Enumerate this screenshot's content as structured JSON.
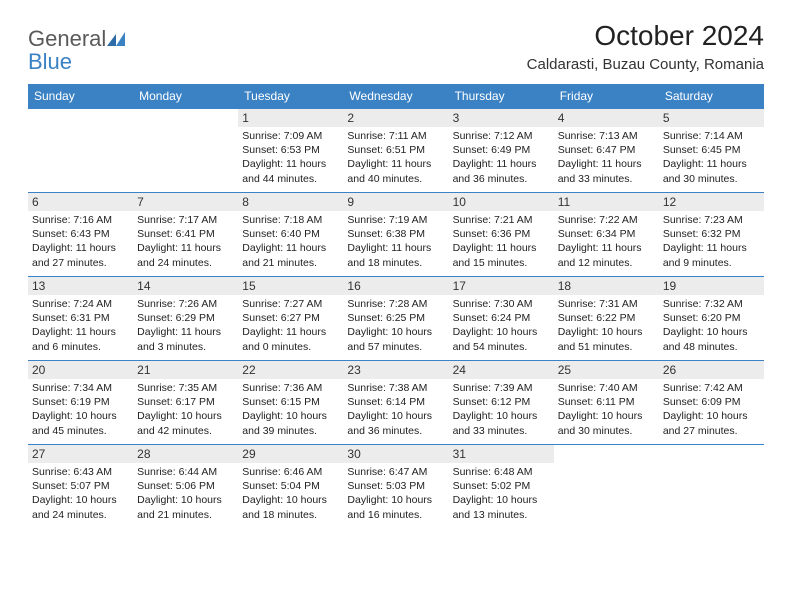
{
  "logo": {
    "general": "General",
    "blue": "Blue"
  },
  "title": "October 2024",
  "location": "Caldarasti, Buzau County, Romania",
  "colors": {
    "header_bg": "#3b82c4",
    "header_text": "#ffffff",
    "daynum_bg": "#ececec",
    "border": "#3b82c4",
    "logo_gray": "#5a5a5a",
    "logo_blue": "#3b82c4"
  },
  "dayHeaders": [
    "Sunday",
    "Monday",
    "Tuesday",
    "Wednesday",
    "Thursday",
    "Friday",
    "Saturday"
  ],
  "weeks": [
    [
      {
        "blank": true
      },
      {
        "blank": true
      },
      {
        "num": "1",
        "sunrise": "Sunrise: 7:09 AM",
        "sunset": "Sunset: 6:53 PM",
        "daylight1": "Daylight: 11 hours",
        "daylight2": "and 44 minutes."
      },
      {
        "num": "2",
        "sunrise": "Sunrise: 7:11 AM",
        "sunset": "Sunset: 6:51 PM",
        "daylight1": "Daylight: 11 hours",
        "daylight2": "and 40 minutes."
      },
      {
        "num": "3",
        "sunrise": "Sunrise: 7:12 AM",
        "sunset": "Sunset: 6:49 PM",
        "daylight1": "Daylight: 11 hours",
        "daylight2": "and 36 minutes."
      },
      {
        "num": "4",
        "sunrise": "Sunrise: 7:13 AM",
        "sunset": "Sunset: 6:47 PM",
        "daylight1": "Daylight: 11 hours",
        "daylight2": "and 33 minutes."
      },
      {
        "num": "5",
        "sunrise": "Sunrise: 7:14 AM",
        "sunset": "Sunset: 6:45 PM",
        "daylight1": "Daylight: 11 hours",
        "daylight2": "and 30 minutes."
      }
    ],
    [
      {
        "num": "6",
        "sunrise": "Sunrise: 7:16 AM",
        "sunset": "Sunset: 6:43 PM",
        "daylight1": "Daylight: 11 hours",
        "daylight2": "and 27 minutes."
      },
      {
        "num": "7",
        "sunrise": "Sunrise: 7:17 AM",
        "sunset": "Sunset: 6:41 PM",
        "daylight1": "Daylight: 11 hours",
        "daylight2": "and 24 minutes."
      },
      {
        "num": "8",
        "sunrise": "Sunrise: 7:18 AM",
        "sunset": "Sunset: 6:40 PM",
        "daylight1": "Daylight: 11 hours",
        "daylight2": "and 21 minutes."
      },
      {
        "num": "9",
        "sunrise": "Sunrise: 7:19 AM",
        "sunset": "Sunset: 6:38 PM",
        "daylight1": "Daylight: 11 hours",
        "daylight2": "and 18 minutes."
      },
      {
        "num": "10",
        "sunrise": "Sunrise: 7:21 AM",
        "sunset": "Sunset: 6:36 PM",
        "daylight1": "Daylight: 11 hours",
        "daylight2": "and 15 minutes."
      },
      {
        "num": "11",
        "sunrise": "Sunrise: 7:22 AM",
        "sunset": "Sunset: 6:34 PM",
        "daylight1": "Daylight: 11 hours",
        "daylight2": "and 12 minutes."
      },
      {
        "num": "12",
        "sunrise": "Sunrise: 7:23 AM",
        "sunset": "Sunset: 6:32 PM",
        "daylight1": "Daylight: 11 hours",
        "daylight2": "and 9 minutes."
      }
    ],
    [
      {
        "num": "13",
        "sunrise": "Sunrise: 7:24 AM",
        "sunset": "Sunset: 6:31 PM",
        "daylight1": "Daylight: 11 hours",
        "daylight2": "and 6 minutes."
      },
      {
        "num": "14",
        "sunrise": "Sunrise: 7:26 AM",
        "sunset": "Sunset: 6:29 PM",
        "daylight1": "Daylight: 11 hours",
        "daylight2": "and 3 minutes."
      },
      {
        "num": "15",
        "sunrise": "Sunrise: 7:27 AM",
        "sunset": "Sunset: 6:27 PM",
        "daylight1": "Daylight: 11 hours",
        "daylight2": "and 0 minutes."
      },
      {
        "num": "16",
        "sunrise": "Sunrise: 7:28 AM",
        "sunset": "Sunset: 6:25 PM",
        "daylight1": "Daylight: 10 hours",
        "daylight2": "and 57 minutes."
      },
      {
        "num": "17",
        "sunrise": "Sunrise: 7:30 AM",
        "sunset": "Sunset: 6:24 PM",
        "daylight1": "Daylight: 10 hours",
        "daylight2": "and 54 minutes."
      },
      {
        "num": "18",
        "sunrise": "Sunrise: 7:31 AM",
        "sunset": "Sunset: 6:22 PM",
        "daylight1": "Daylight: 10 hours",
        "daylight2": "and 51 minutes."
      },
      {
        "num": "19",
        "sunrise": "Sunrise: 7:32 AM",
        "sunset": "Sunset: 6:20 PM",
        "daylight1": "Daylight: 10 hours",
        "daylight2": "and 48 minutes."
      }
    ],
    [
      {
        "num": "20",
        "sunrise": "Sunrise: 7:34 AM",
        "sunset": "Sunset: 6:19 PM",
        "daylight1": "Daylight: 10 hours",
        "daylight2": "and 45 minutes."
      },
      {
        "num": "21",
        "sunrise": "Sunrise: 7:35 AM",
        "sunset": "Sunset: 6:17 PM",
        "daylight1": "Daylight: 10 hours",
        "daylight2": "and 42 minutes."
      },
      {
        "num": "22",
        "sunrise": "Sunrise: 7:36 AM",
        "sunset": "Sunset: 6:15 PM",
        "daylight1": "Daylight: 10 hours",
        "daylight2": "and 39 minutes."
      },
      {
        "num": "23",
        "sunrise": "Sunrise: 7:38 AM",
        "sunset": "Sunset: 6:14 PM",
        "daylight1": "Daylight: 10 hours",
        "daylight2": "and 36 minutes."
      },
      {
        "num": "24",
        "sunrise": "Sunrise: 7:39 AM",
        "sunset": "Sunset: 6:12 PM",
        "daylight1": "Daylight: 10 hours",
        "daylight2": "and 33 minutes."
      },
      {
        "num": "25",
        "sunrise": "Sunrise: 7:40 AM",
        "sunset": "Sunset: 6:11 PM",
        "daylight1": "Daylight: 10 hours",
        "daylight2": "and 30 minutes."
      },
      {
        "num": "26",
        "sunrise": "Sunrise: 7:42 AM",
        "sunset": "Sunset: 6:09 PM",
        "daylight1": "Daylight: 10 hours",
        "daylight2": "and 27 minutes."
      }
    ],
    [
      {
        "num": "27",
        "sunrise": "Sunrise: 6:43 AM",
        "sunset": "Sunset: 5:07 PM",
        "daylight1": "Daylight: 10 hours",
        "daylight2": "and 24 minutes."
      },
      {
        "num": "28",
        "sunrise": "Sunrise: 6:44 AM",
        "sunset": "Sunset: 5:06 PM",
        "daylight1": "Daylight: 10 hours",
        "daylight2": "and 21 minutes."
      },
      {
        "num": "29",
        "sunrise": "Sunrise: 6:46 AM",
        "sunset": "Sunset: 5:04 PM",
        "daylight1": "Daylight: 10 hours",
        "daylight2": "and 18 minutes."
      },
      {
        "num": "30",
        "sunrise": "Sunrise: 6:47 AM",
        "sunset": "Sunset: 5:03 PM",
        "daylight1": "Daylight: 10 hours",
        "daylight2": "and 16 minutes."
      },
      {
        "num": "31",
        "sunrise": "Sunrise: 6:48 AM",
        "sunset": "Sunset: 5:02 PM",
        "daylight1": "Daylight: 10 hours",
        "daylight2": "and 13 minutes."
      },
      {
        "blank": true
      },
      {
        "blank": true
      }
    ]
  ]
}
